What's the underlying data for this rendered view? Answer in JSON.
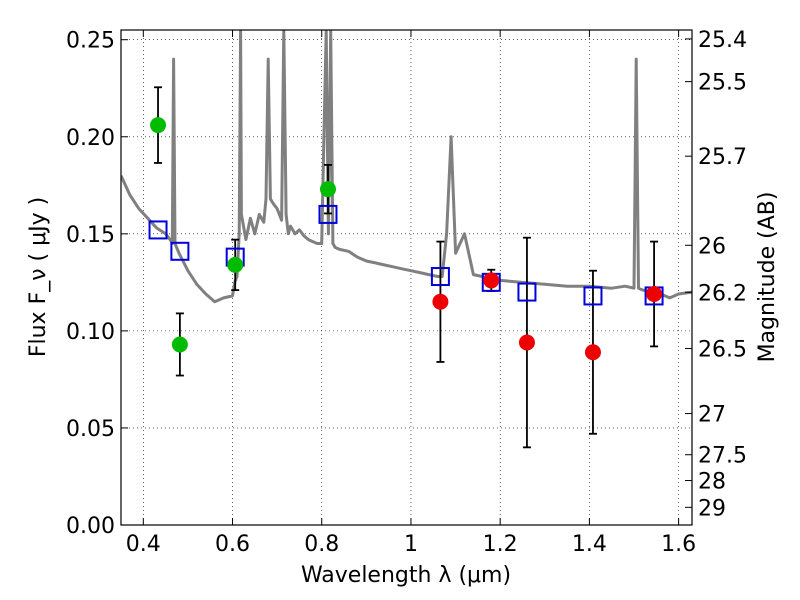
{
  "chart_data": {
    "type": "scatter",
    "xlabel": "Wavelength  λ (μm)",
    "ylabel": "Flux  F_ν  ( μJy )",
    "ylabel_right": "Magnitude (AB)",
    "xlim": [
      0.35,
      1.63
    ],
    "ylim": [
      0.0,
      0.255
    ],
    "grid": true,
    "x_ticks": [
      0.4,
      0.6,
      0.8,
      1.0,
      1.2,
      1.4,
      1.6
    ],
    "x_tick_labels": [
      "0.4",
      "0.6",
      "0.8",
      "1",
      "1.2",
      "1.4",
      "1.6"
    ],
    "y_ticks": [
      0.0,
      0.05,
      0.1,
      0.15,
      0.2,
      0.25
    ],
    "y_tick_labels": [
      "0.00",
      "0.05",
      "0.10",
      "0.15",
      "0.20",
      "0.25"
    ],
    "right_ticks": [
      {
        "mag": "25.4",
        "flux": 0.2504
      },
      {
        "mag": "25.5",
        "flux": 0.2284
      },
      {
        "mag": "25.7",
        "flux": 0.19
      },
      {
        "mag": "26",
        "flux": 0.1441
      },
      {
        "mag": "26.2",
        "flux": 0.1199
      },
      {
        "mag": "26.5",
        "flux": 0.0909
      },
      {
        "mag": "27",
        "flux": 0.0574
      },
      {
        "mag": "27.5",
        "flux": 0.0362
      },
      {
        "mag": "28",
        "flux": 0.0229
      },
      {
        "mag": "29",
        "flux": 0.0091
      }
    ],
    "series": [
      {
        "kind": "model-spectrum",
        "color": "#808080",
        "x": [
          0.35,
          0.37,
          0.39,
          0.41,
          0.43,
          0.45,
          0.46,
          0.465,
          0.468,
          0.471,
          0.48,
          0.5,
          0.52,
          0.54,
          0.56,
          0.58,
          0.6,
          0.605,
          0.61,
          0.615,
          0.618,
          0.62,
          0.63,
          0.64,
          0.65,
          0.66,
          0.67,
          0.675,
          0.68,
          0.685,
          0.69,
          0.7,
          0.71,
          0.715,
          0.72,
          0.725,
          0.73,
          0.74,
          0.75,
          0.76,
          0.77,
          0.78,
          0.79,
          0.8,
          0.81,
          0.815,
          0.82,
          0.825,
          0.83,
          0.84,
          0.86,
          0.88,
          0.9,
          0.92,
          0.94,
          0.96,
          0.98,
          1.0,
          1.02,
          1.04,
          1.06,
          1.07,
          1.08,
          1.09,
          1.1,
          1.12,
          1.14,
          1.16,
          1.18,
          1.2,
          1.25,
          1.3,
          1.35,
          1.4,
          1.45,
          1.48,
          1.5,
          1.505,
          1.51,
          1.52,
          1.55,
          1.58,
          1.6,
          1.63
        ],
        "y": [
          0.18,
          0.17,
          0.163,
          0.158,
          0.153,
          0.15,
          0.147,
          0.145,
          0.24,
          0.145,
          0.14,
          0.131,
          0.124,
          0.119,
          0.115,
          0.117,
          0.118,
          0.125,
          0.128,
          0.15,
          0.255,
          0.16,
          0.147,
          0.158,
          0.15,
          0.16,
          0.156,
          0.168,
          0.24,
          0.168,
          0.166,
          0.163,
          0.157,
          0.255,
          0.16,
          0.15,
          0.154,
          0.15,
          0.152,
          0.149,
          0.147,
          0.146,
          0.145,
          0.145,
          0.255,
          0.15,
          0.255,
          0.145,
          0.143,
          0.142,
          0.141,
          0.138,
          0.136,
          0.135,
          0.134,
          0.133,
          0.132,
          0.131,
          0.13,
          0.129,
          0.128,
          0.128,
          0.15,
          0.2,
          0.14,
          0.15,
          0.129,
          0.128,
          0.127,
          0.126,
          0.125,
          0.124,
          0.123,
          0.123,
          0.122,
          0.123,
          0.122,
          0.24,
          0.122,
          0.121,
          0.12,
          0.117,
          0.119,
          0.12
        ]
      },
      {
        "kind": "points-with-errors",
        "color": "#00bb00",
        "points": [
          {
            "x": 0.433,
            "y": 0.206,
            "err": 0.0195
          },
          {
            "x": 0.482,
            "y": 0.093,
            "err": 0.016
          },
          {
            "x": 0.606,
            "y": 0.134,
            "err": 0.013
          },
          {
            "x": 0.814,
            "y": 0.173,
            "err": 0.0125
          }
        ]
      },
      {
        "kind": "points-with-errors",
        "color": "#ee0000",
        "points": [
          {
            "x": 1.066,
            "y": 0.115,
            "err": 0.031
          },
          {
            "x": 1.18,
            "y": 0.126,
            "err": 0.0055
          },
          {
            "x": 1.26,
            "y": 0.094,
            "err": 0.054
          },
          {
            "x": 1.408,
            "y": 0.089,
            "err": 0.042
          },
          {
            "x": 1.545,
            "y": 0.119,
            "err": 0.027
          }
        ]
      },
      {
        "kind": "open-squares",
        "color": "#0000dd",
        "points": [
          {
            "x": 0.433,
            "y": 0.152
          },
          {
            "x": 0.482,
            "y": 0.141
          },
          {
            "x": 0.606,
            "y": 0.138
          },
          {
            "x": 0.814,
            "y": 0.16
          },
          {
            "x": 1.066,
            "y": 0.128
          },
          {
            "x": 1.18,
            "y": 0.125
          },
          {
            "x": 1.26,
            "y": 0.12
          },
          {
            "x": 1.408,
            "y": 0.118
          },
          {
            "x": 1.545,
            "y": 0.118
          }
        ]
      }
    ]
  }
}
